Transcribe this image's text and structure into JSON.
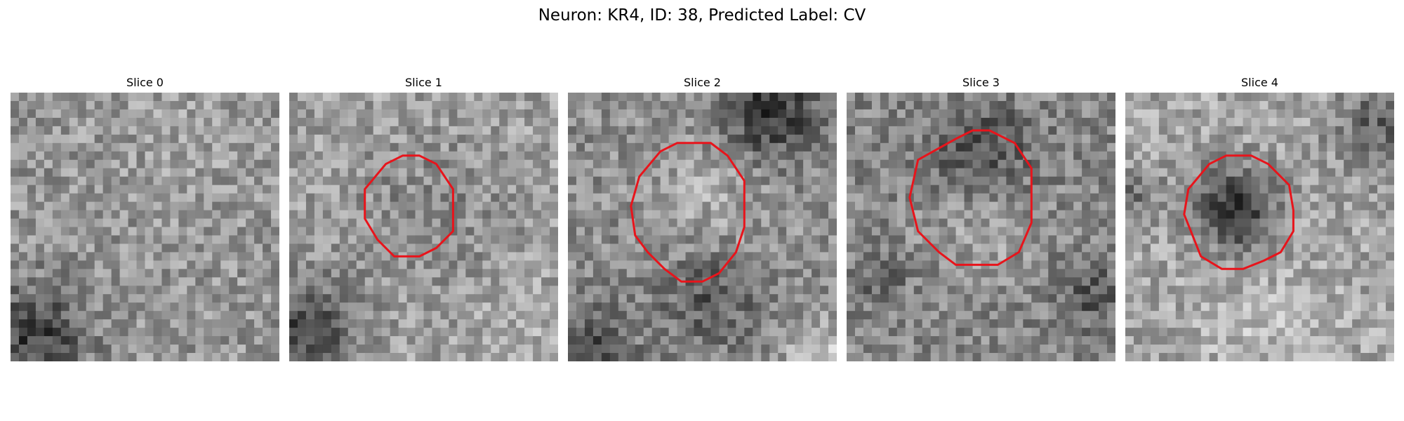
{
  "figure": {
    "title": "Neuron: KR4, ID: 38, Predicted Label: CV",
    "contour_color": "#e8141b"
  },
  "slices": [
    {
      "label": "Slice 0"
    },
    {
      "label": "Slice 1"
    },
    {
      "label": "Slice 2"
    },
    {
      "label": "Slice 3"
    },
    {
      "label": "Slice 4"
    }
  ]
}
